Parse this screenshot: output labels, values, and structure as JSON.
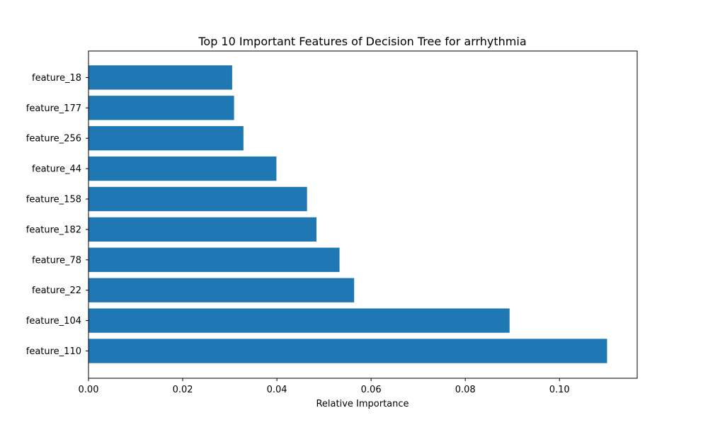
{
  "chart_data": {
    "type": "bar",
    "orientation": "horizontal",
    "title": "Top 10 Important Features of Decision Tree for arrhythmia",
    "xlabel": "Relative Importance",
    "ylabel": "",
    "xlim": [
      0,
      0.1165
    ],
    "xticks": [
      0.0,
      0.02,
      0.04,
      0.06,
      0.08,
      0.1
    ],
    "xtick_labels": [
      "0.00",
      "0.02",
      "0.04",
      "0.06",
      "0.08",
      "0.10"
    ],
    "grid": false,
    "bar_color": "#1f77b4",
    "categories": [
      "feature_110",
      "feature_104",
      "feature_22",
      "feature_78",
      "feature_182",
      "feature_158",
      "feature_44",
      "feature_256",
      "feature_177",
      "feature_18"
    ],
    "values": [
      0.1101,
      0.0894,
      0.0564,
      0.0533,
      0.0484,
      0.0464,
      0.0399,
      0.0329,
      0.0309,
      0.0305
    ]
  }
}
